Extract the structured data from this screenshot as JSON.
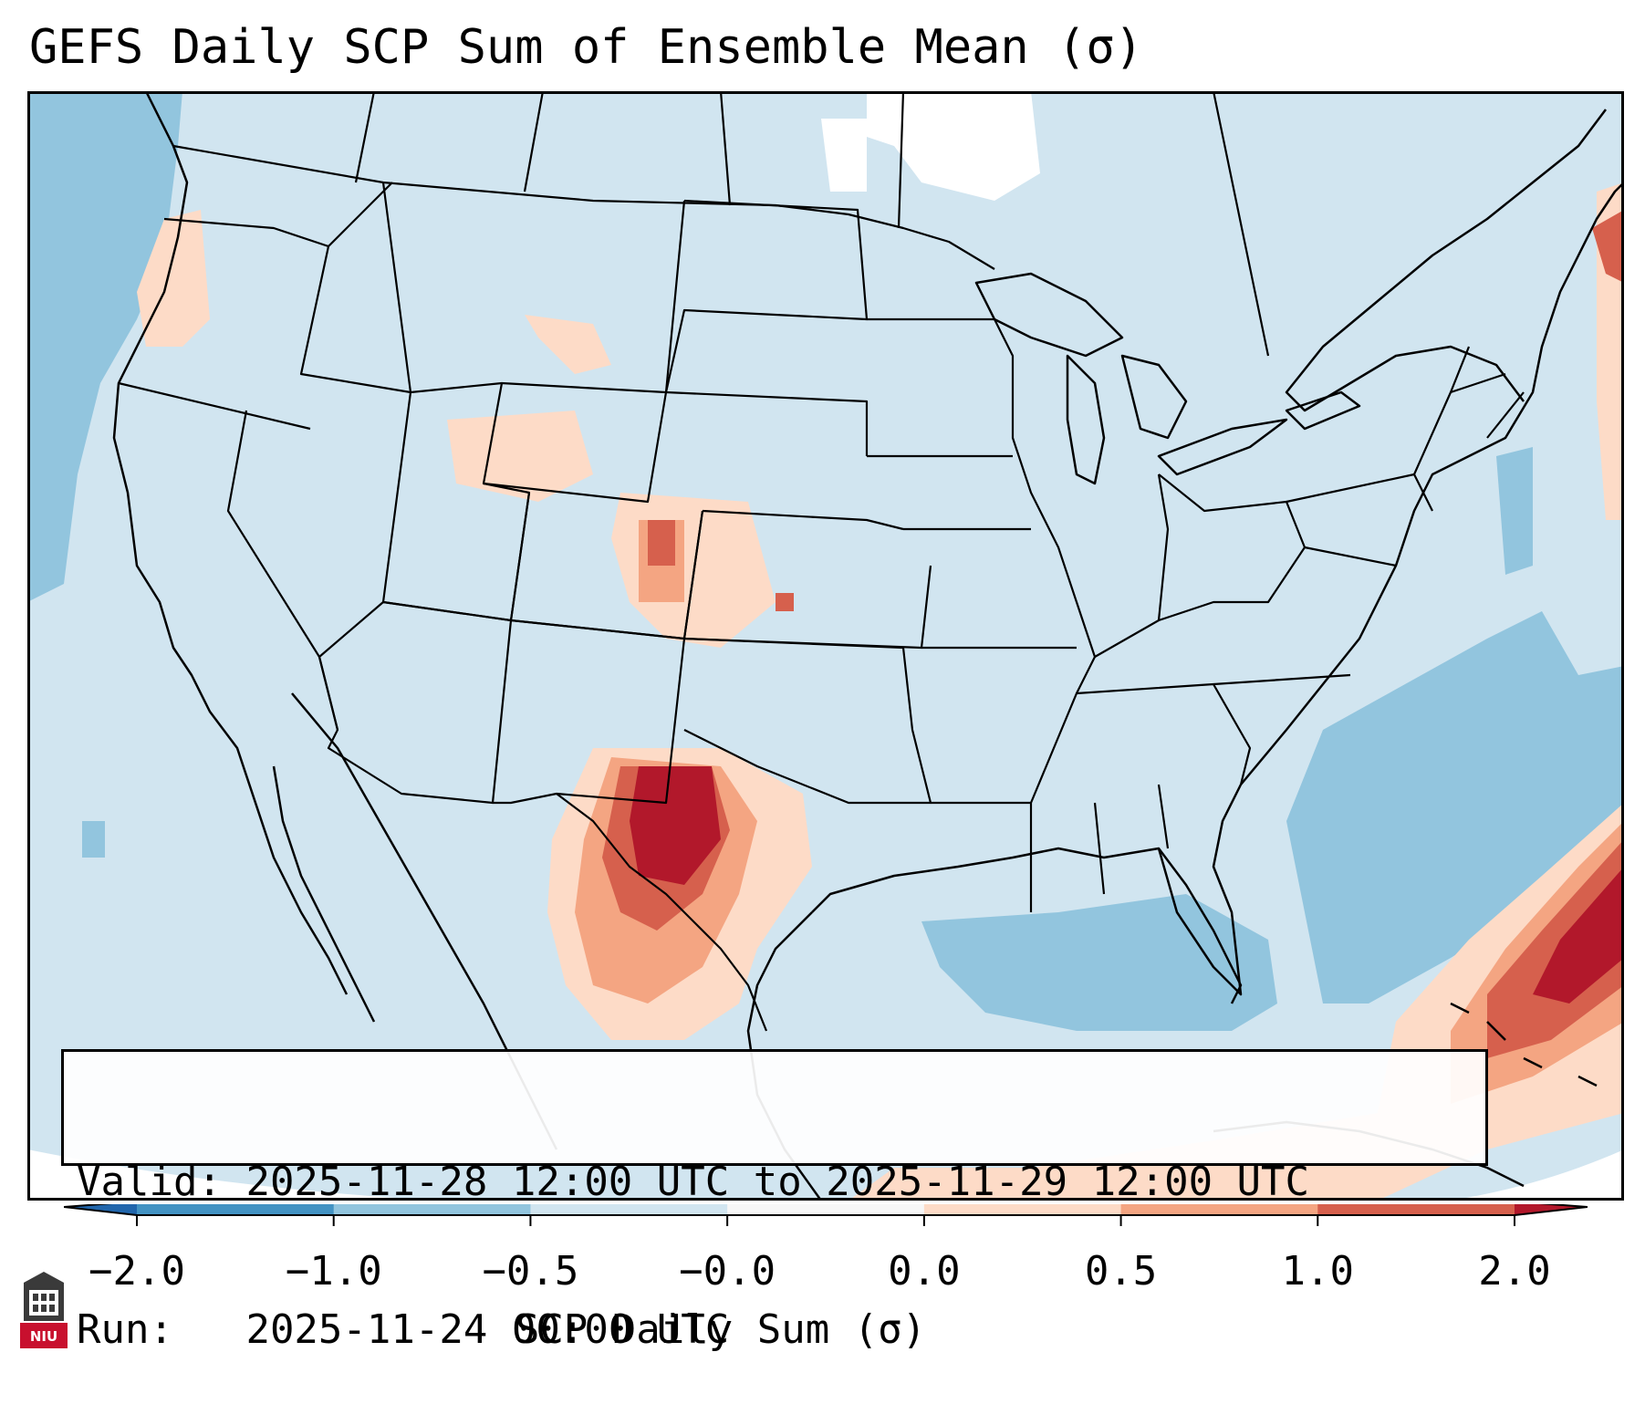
{
  "title": "GEFS Daily SCP Sum of Ensemble Mean (σ)",
  "info": {
    "valid_label": "Valid:",
    "valid_value": "2025-11-28 12:00 UTC to 2025-11-29 12:00 UTC",
    "run_label": "Run:",
    "run_value": "2025-11-24 00:00 UTC"
  },
  "colorbar": {
    "title": "SCP Daily Sum (σ)",
    "ticks": [
      "−2.0",
      "−1.0",
      "−0.5",
      "−0.0",
      "0.0",
      "0.5",
      "1.0",
      "2.0"
    ],
    "colors": [
      "#4393c3",
      "#92c5de",
      "#d1e5f0",
      "#f7f7f7",
      "#fddbc7",
      "#f4a582",
      "#d6604d",
      "#b2182b"
    ],
    "extend_low": "#2166ac",
    "extend_high": "#b2182b"
  },
  "logo": {
    "text": "NIU"
  },
  "colors": {
    "background_field": "#d1e5f0",
    "frame": "#000000"
  }
}
